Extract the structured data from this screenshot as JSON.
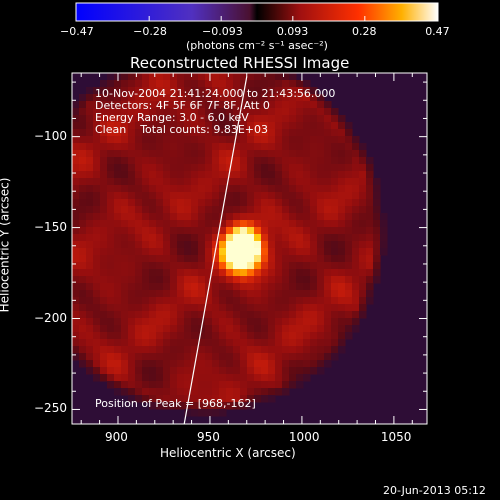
{
  "chart_data": {
    "type": "heatmap",
    "title": "Reconstructed RHESSI Image",
    "annotations": [
      "10-Nov-2004 21:41:24.000 to 21:43:56.000",
      "Detectors: 4F 5F 6F 7F 8F, Att 0",
      "Energy Range: 3.0 - 6.0 keV",
      "Clean    Total counts: 9.83E+03"
    ],
    "peak_label": "Position of Peak = [968,-162]",
    "peak": {
      "x": 968,
      "y": -162
    },
    "xlabel": "Heliocentric X (arcsec)",
    "ylabel": "Heliocentric Y (arcsec)",
    "xlim": [
      875,
      1068
    ],
    "ylim": [
      -258,
      -65
    ],
    "x_ticks": [
      900,
      950,
      1000,
      1050
    ],
    "y_ticks": [
      -100,
      -150,
      -200,
      -250
    ],
    "x_tick_labels": [
      "900",
      "950",
      "1000",
      "1050"
    ],
    "y_tick_labels": [
      "−100",
      "−150",
      "−200",
      "−250"
    ],
    "colorbar": {
      "range": [
        -0.47,
        0.47
      ],
      "ticks": [
        -0.47,
        -0.28,
        -0.093,
        0.093,
        0.28,
        0.47
      ],
      "tick_labels": [
        "−0.47",
        "−0.28",
        "−0.093",
        "0.093",
        "0.28",
        "0.47"
      ],
      "units_label": "(photons cm⁻² s⁻¹ asec⁻²)"
    },
    "limb_line": {
      "x_start": 936,
      "y_start": -258,
      "x_end": 970,
      "y_end": -67
    },
    "color_scale": "red-temperature"
  },
  "timestamp": "20-Jun-2013 05:12",
  "colors": {
    "background": "#000000",
    "frame": "#ffffff",
    "limb": "#ffffff"
  }
}
